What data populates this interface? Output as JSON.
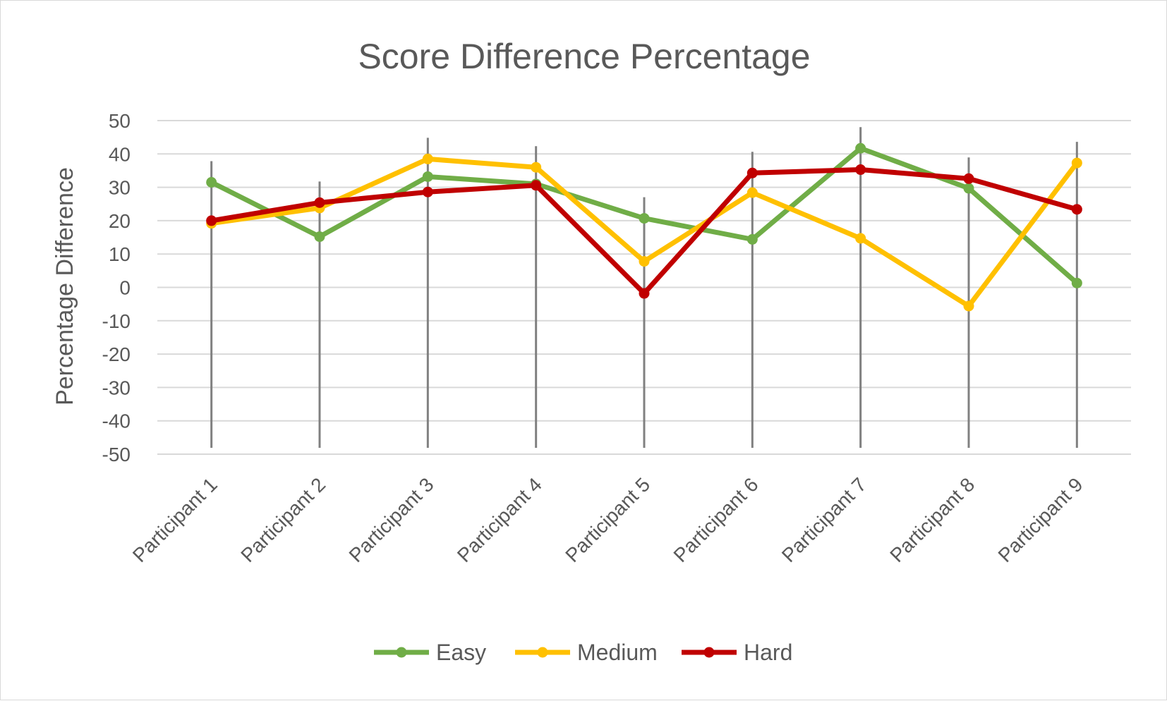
{
  "chart_data": {
    "type": "line",
    "title": "Score Difference Percentage",
    "xlabel": "",
    "ylabel": "Percentage Difference",
    "ylim": [
      -50,
      50
    ],
    "ytick_step": 10,
    "categories": [
      "Participant 1",
      "Participant 2",
      "Participant 3",
      "Participant 4",
      "Participant 5",
      "Participant 6",
      "Participant 7",
      "Participant 8",
      "Participant 9"
    ],
    "series": [
      {
        "name": "Easy",
        "color": "#70ad47",
        "values": [
          31.5,
          15.2,
          33.2,
          31.0,
          20.7,
          14.4,
          41.7,
          29.7,
          1.3
        ]
      },
      {
        "name": "Medium",
        "color": "#ffc000",
        "values": [
          19.2,
          23.8,
          38.5,
          36.0,
          7.8,
          28.4,
          14.7,
          -5.6,
          37.3
        ]
      },
      {
        "name": "Hard",
        "color": "#c00000",
        "values": [
          20.0,
          25.4,
          28.6,
          30.6,
          -1.8,
          34.3,
          35.3,
          32.6,
          23.4
        ]
      }
    ],
    "grid": true,
    "drop_lines": true,
    "legend_position": "bottom"
  }
}
